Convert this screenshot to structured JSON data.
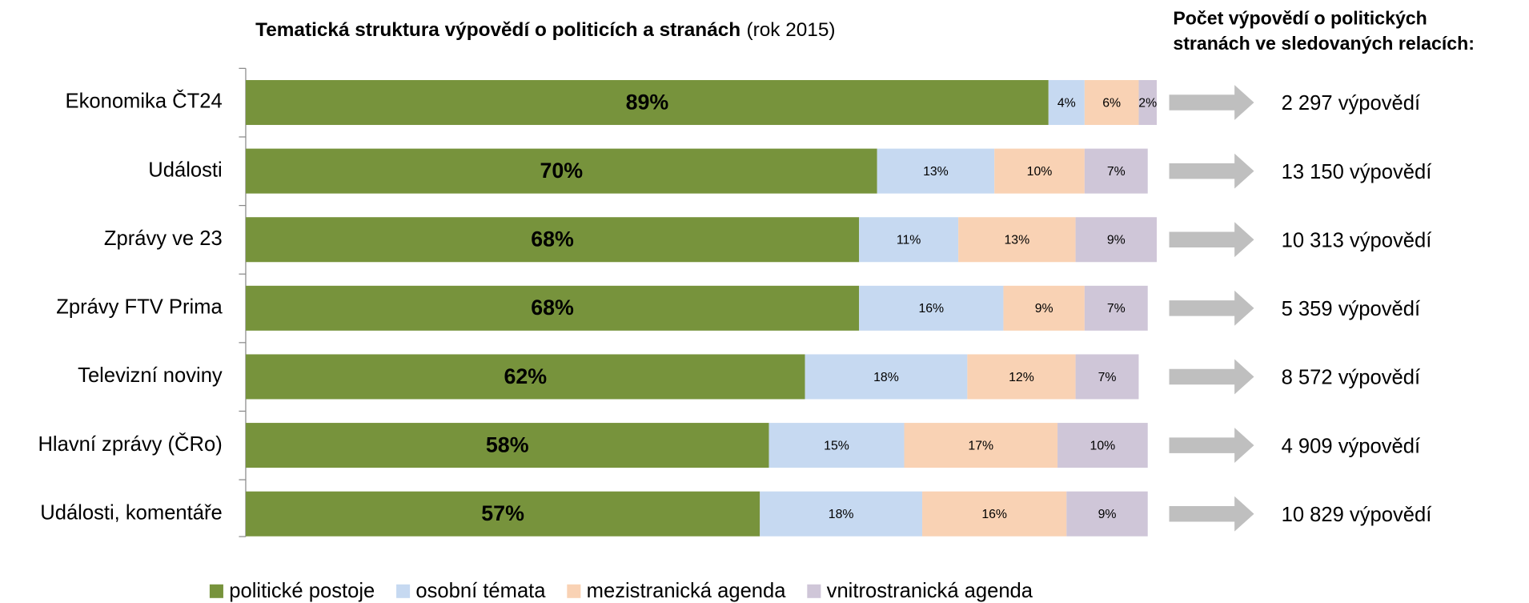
{
  "chart_data": {
    "type": "stacked_bar_horizontal",
    "title": "Tematická struktura výpovědí o politicích a stranách",
    "subtitle": "(rok 2015)",
    "categories": [
      "Ekonomika ČT24",
      "Události",
      "Zprávy ve 23",
      "Zprávy FTV Prima",
      "Televizní noviny",
      "Hlavní zprávy (ČRo)",
      "Události, komentáře"
    ],
    "xlim": [
      0,
      100
    ],
    "series": [
      {
        "name": "politické postoje",
        "color": "#77933c",
        "values": [
          89,
          70,
          68,
          68,
          62,
          58,
          57
        ],
        "value_labels": [
          "89%",
          "70%",
          "68%",
          "68%",
          "62%",
          "58%",
          "57%"
        ]
      },
      {
        "name": "osobní témata",
        "color": "#c6d9f1",
        "values": [
          4,
          13,
          11,
          16,
          18,
          15,
          18
        ],
        "value_labels": [
          "4%",
          "13%",
          "11%",
          "16%",
          "18%",
          "15%",
          "18%"
        ]
      },
      {
        "name": "mezistranická agenda",
        "color": "#f9d2b4",
        "values": [
          6,
          10,
          13,
          9,
          12,
          17,
          16
        ],
        "value_labels": [
          "6%",
          "10%",
          "13%",
          "9%",
          "12%",
          "17%",
          "16%"
        ]
      },
      {
        "name": "vnitrostranická agenda",
        "color": "#cfc6d8",
        "values": [
          2,
          7,
          9,
          7,
          7,
          10,
          9
        ],
        "value_labels": [
          "2%",
          "7%",
          "9%",
          "7%",
          "7%",
          "10%",
          "9%"
        ]
      }
    ],
    "side_title": [
      "Počet výpovědí o politických",
      "stranách ve sledovaných relacích:"
    ],
    "counts": [
      "2 297 výpovědí",
      "13 150 výpovědí",
      "10 313 výpovědí",
      "5 359 výpovědí",
      "8 572 výpovědí",
      "4 909 výpovědí",
      "10 829 výpovědí"
    ]
  }
}
